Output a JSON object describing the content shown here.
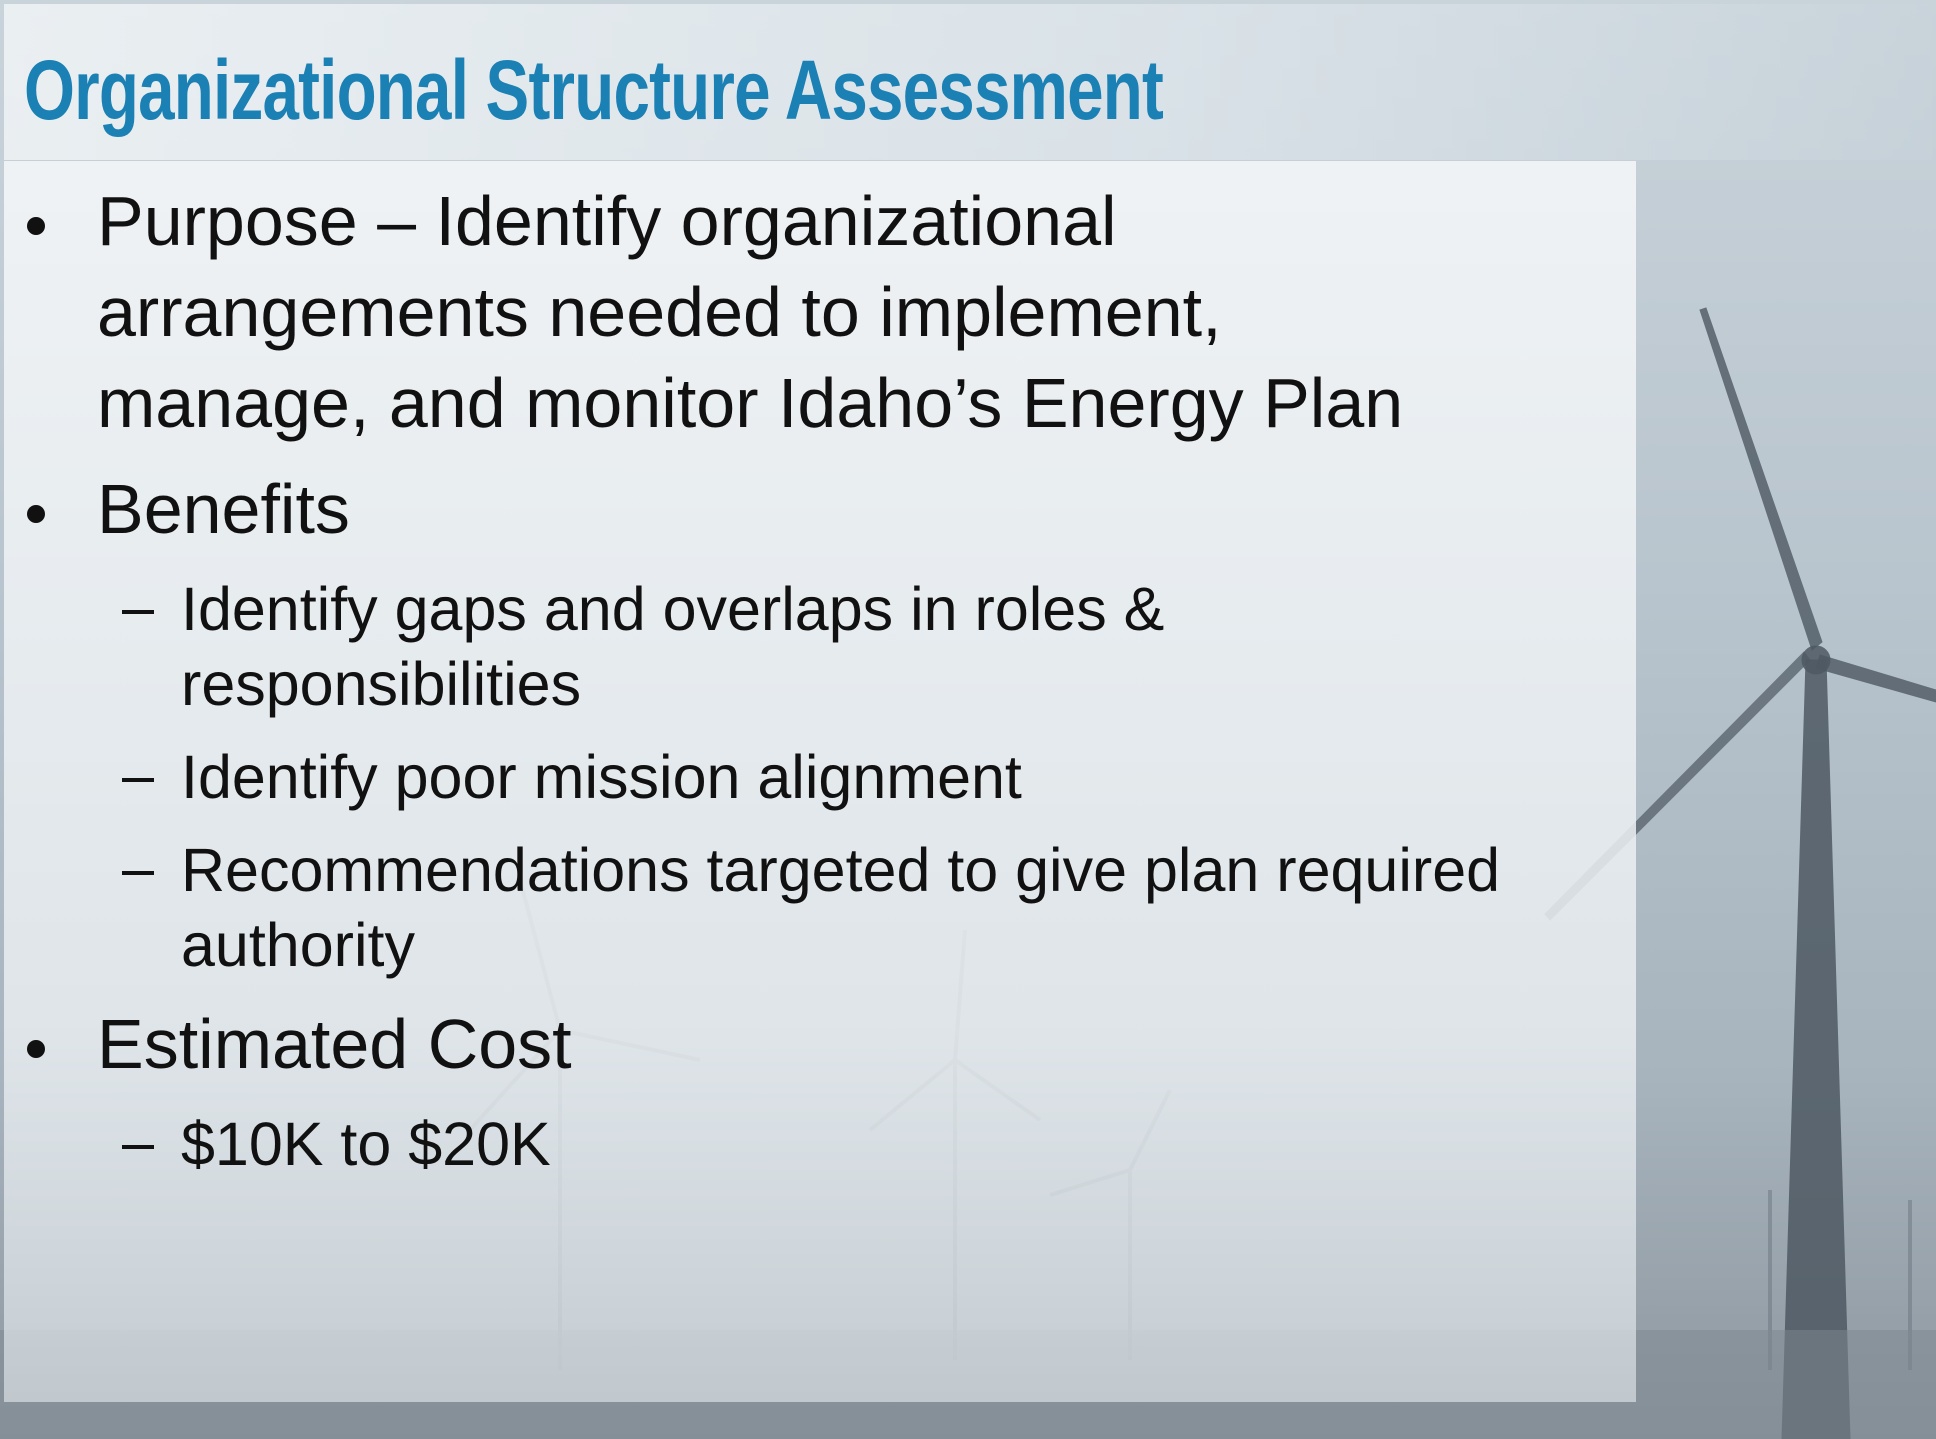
{
  "title": "Organizational Structure Assessment",
  "bullets": [
    {
      "lines": [
        "Purpose – Identify organizational",
        "arrangements needed to implement,",
        "manage, and monitor Idaho’s Energy Plan"
      ]
    },
    {
      "lines": [
        "Benefits"
      ],
      "subitems": [
        {
          "lines": [
            "Identify gaps and overlaps in roles &",
            "responsibilities"
          ]
        },
        {
          "lines": [
            "Identify poor mission alignment"
          ]
        },
        {
          "lines": [
            "Recommendations targeted to give plan required",
            "authority"
          ]
        }
      ]
    },
    {
      "lines": [
        "Estimated Cost"
      ],
      "subitems": [
        {
          "lines": [
            "$10K to $20K"
          ]
        }
      ]
    }
  ]
}
